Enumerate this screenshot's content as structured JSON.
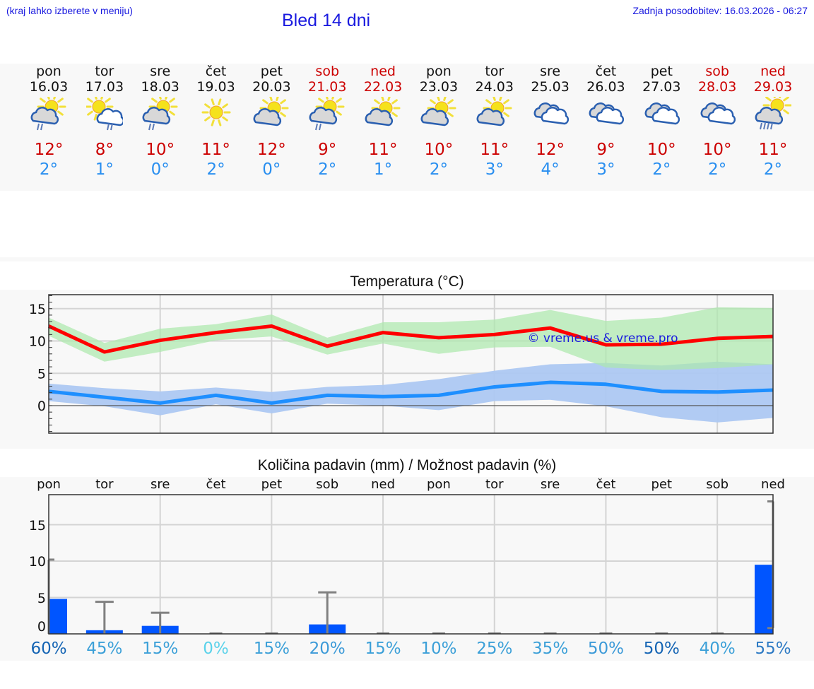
{
  "header": {
    "menu_hint": "(kraj lahko izberete v meniju)",
    "title": "Bled 14 dni",
    "last_update": "Zadnja posodobitev: 16.03.2026 - 06:27"
  },
  "days": [
    {
      "name": "pon",
      "date": "16.03",
      "weekend": false,
      "icon": "partly-cloudy-light-rain-icon",
      "max": "12°",
      "min": "2°"
    },
    {
      "name": "tor",
      "date": "17.03",
      "weekend": false,
      "icon": "sun-cloud-light-rain-icon",
      "max": "8°",
      "min": "1°"
    },
    {
      "name": "sre",
      "date": "18.03",
      "weekend": false,
      "icon": "partly-cloudy-light-rain-icon",
      "max": "10°",
      "min": "0°"
    },
    {
      "name": "čet",
      "date": "19.03",
      "weekend": false,
      "icon": "sunny-icon",
      "max": "11°",
      "min": "2°"
    },
    {
      "name": "pet",
      "date": "20.03",
      "weekend": false,
      "icon": "partly-cloudy-icon",
      "max": "12°",
      "min": "0°"
    },
    {
      "name": "sob",
      "date": "21.03",
      "weekend": true,
      "icon": "partly-cloudy-light-rain-icon",
      "max": "9°",
      "min": "2°"
    },
    {
      "name": "ned",
      "date": "22.03",
      "weekend": true,
      "icon": "partly-cloudy-icon",
      "max": "11°",
      "min": "1°"
    },
    {
      "name": "pon",
      "date": "23.03",
      "weekend": false,
      "icon": "partly-cloudy-icon",
      "max": "10°",
      "min": "2°"
    },
    {
      "name": "tor",
      "date": "24.03",
      "weekend": false,
      "icon": "partly-cloudy-icon",
      "max": "11°",
      "min": "3°"
    },
    {
      "name": "sre",
      "date": "25.03",
      "weekend": false,
      "icon": "cloudy-icon",
      "max": "12°",
      "min": "4°"
    },
    {
      "name": "čet",
      "date": "26.03",
      "weekend": false,
      "icon": "cloudy-icon",
      "max": "9°",
      "min": "3°"
    },
    {
      "name": "pet",
      "date": "27.03",
      "weekend": false,
      "icon": "cloudy-icon",
      "max": "10°",
      "min": "2°"
    },
    {
      "name": "sob",
      "date": "28.03",
      "weekend": true,
      "icon": "cloudy-icon",
      "max": "10°",
      "min": "2°"
    },
    {
      "name": "ned",
      "date": "29.03",
      "weekend": true,
      "icon": "partly-cloudy-rain-icon",
      "max": "11°",
      "min": "2°"
    }
  ],
  "colors": {
    "header_text": "#1a1adf",
    "weekend": "#cc0000",
    "tmax": "#cc0000",
    "tmin": "#2a8ff0",
    "max_line": "#ff0000",
    "max_band": "#ade9ad",
    "min_line": "#1e8fff",
    "min_band": "#adc8f2",
    "precip_bar": "#0055ff",
    "error_bar": "#808080"
  },
  "chart_data": [
    {
      "type": "line",
      "title": "Temperatura (°C)",
      "xlabel": "",
      "ylabel": "",
      "categories": [
        "16.03",
        "17.03",
        "18.03",
        "19.03",
        "20.03",
        "21.03",
        "22.03",
        "23.03",
        "24.03",
        "25.03",
        "26.03",
        "27.03",
        "28.03",
        "29.03"
      ],
      "ylim": [
        -4,
        17
      ],
      "yticks": [
        0,
        5,
        10,
        15
      ],
      "grid": true,
      "watermark": "© vreme.us & vreme.pro",
      "series": [
        {
          "name": "max",
          "values": [
            12.3,
            8.3,
            10.1,
            11.3,
            12.3,
            9.2,
            11.3,
            10.5,
            11.0,
            12.0,
            9.4,
            9.5,
            10.4,
            10.7
          ]
        },
        {
          "name": "max_band_upper",
          "values": [
            13.6,
            9.7,
            11.9,
            12.6,
            14.1,
            10.5,
            12.9,
            12.9,
            13.3,
            14.8,
            13.1,
            13.6,
            15.2,
            15.1
          ]
        },
        {
          "name": "max_band_lower",
          "values": [
            10.8,
            6.8,
            8.3,
            10.1,
            10.7,
            7.9,
            9.6,
            8.0,
            9.0,
            9.1,
            5.9,
            5.5,
            5.8,
            6.4
          ]
        },
        {
          "name": "min",
          "values": [
            2.2,
            1.3,
            0.4,
            1.6,
            0.4,
            1.6,
            1.4,
            1.6,
            2.9,
            3.6,
            3.3,
            2.2,
            2.1,
            2.4
          ]
        },
        {
          "name": "min_band_upper",
          "values": [
            3.4,
            2.7,
            2.2,
            2.8,
            2.1,
            2.9,
            3.2,
            4.1,
            5.4,
            6.4,
            6.6,
            6.2,
            6.8,
            6.4
          ]
        },
        {
          "name": "min_band_lower",
          "values": [
            0.7,
            -0.1,
            -1.5,
            0.2,
            -1.2,
            0.3,
            0.0,
            -0.7,
            0.7,
            0.9,
            -0.1,
            -1.8,
            -2.6,
            -1.9
          ]
        }
      ]
    },
    {
      "type": "bar",
      "title": "Količina padavin (mm) / Možnost padavin (%)",
      "xlabel": "",
      "ylabel": "",
      "categories": [
        "pon",
        "tor",
        "sre",
        "čet",
        "pet",
        "sob",
        "ned",
        "pon",
        "tor",
        "sre",
        "čet",
        "pet",
        "sob",
        "ned"
      ],
      "ylim": [
        0,
        19
      ],
      "yticks": [
        0,
        5,
        10,
        15
      ],
      "grid": true,
      "series": [
        {
          "name": "precipitation_mm",
          "values": [
            4.8,
            0.5,
            1.1,
            0,
            0,
            1.3,
            0,
            0,
            0,
            0,
            0,
            0,
            0,
            9.5
          ]
        },
        {
          "name": "precipitation_max_mm",
          "values": [
            10.2,
            4.4,
            2.9,
            0,
            0,
            5.7,
            0,
            0,
            0,
            0,
            0,
            0,
            0,
            18.2
          ]
        },
        {
          "name": "precipitation_min_mm",
          "values": [
            0,
            0,
            0,
            0,
            0,
            0,
            0,
            0,
            0,
            0,
            0,
            0,
            0,
            0.8
          ]
        }
      ],
      "probability_labels": [
        "60%",
        "45%",
        "15%",
        "0%",
        "15%",
        "20%",
        "15%",
        "10%",
        "25%",
        "35%",
        "50%",
        "50%",
        "40%",
        "55%"
      ],
      "probability_colors": [
        "#1464b4",
        "#3ca0d8",
        "#3ca0d8",
        "#5ad2ea",
        "#3ca0d8",
        "#3c9ad8",
        "#3ca0d8",
        "#3ca0d8",
        "#3ca0d8",
        "#3ca0d8",
        "#3c9ad8",
        "#1464b4",
        "#3ca0d8",
        "#2d7ac4"
      ]
    }
  ]
}
